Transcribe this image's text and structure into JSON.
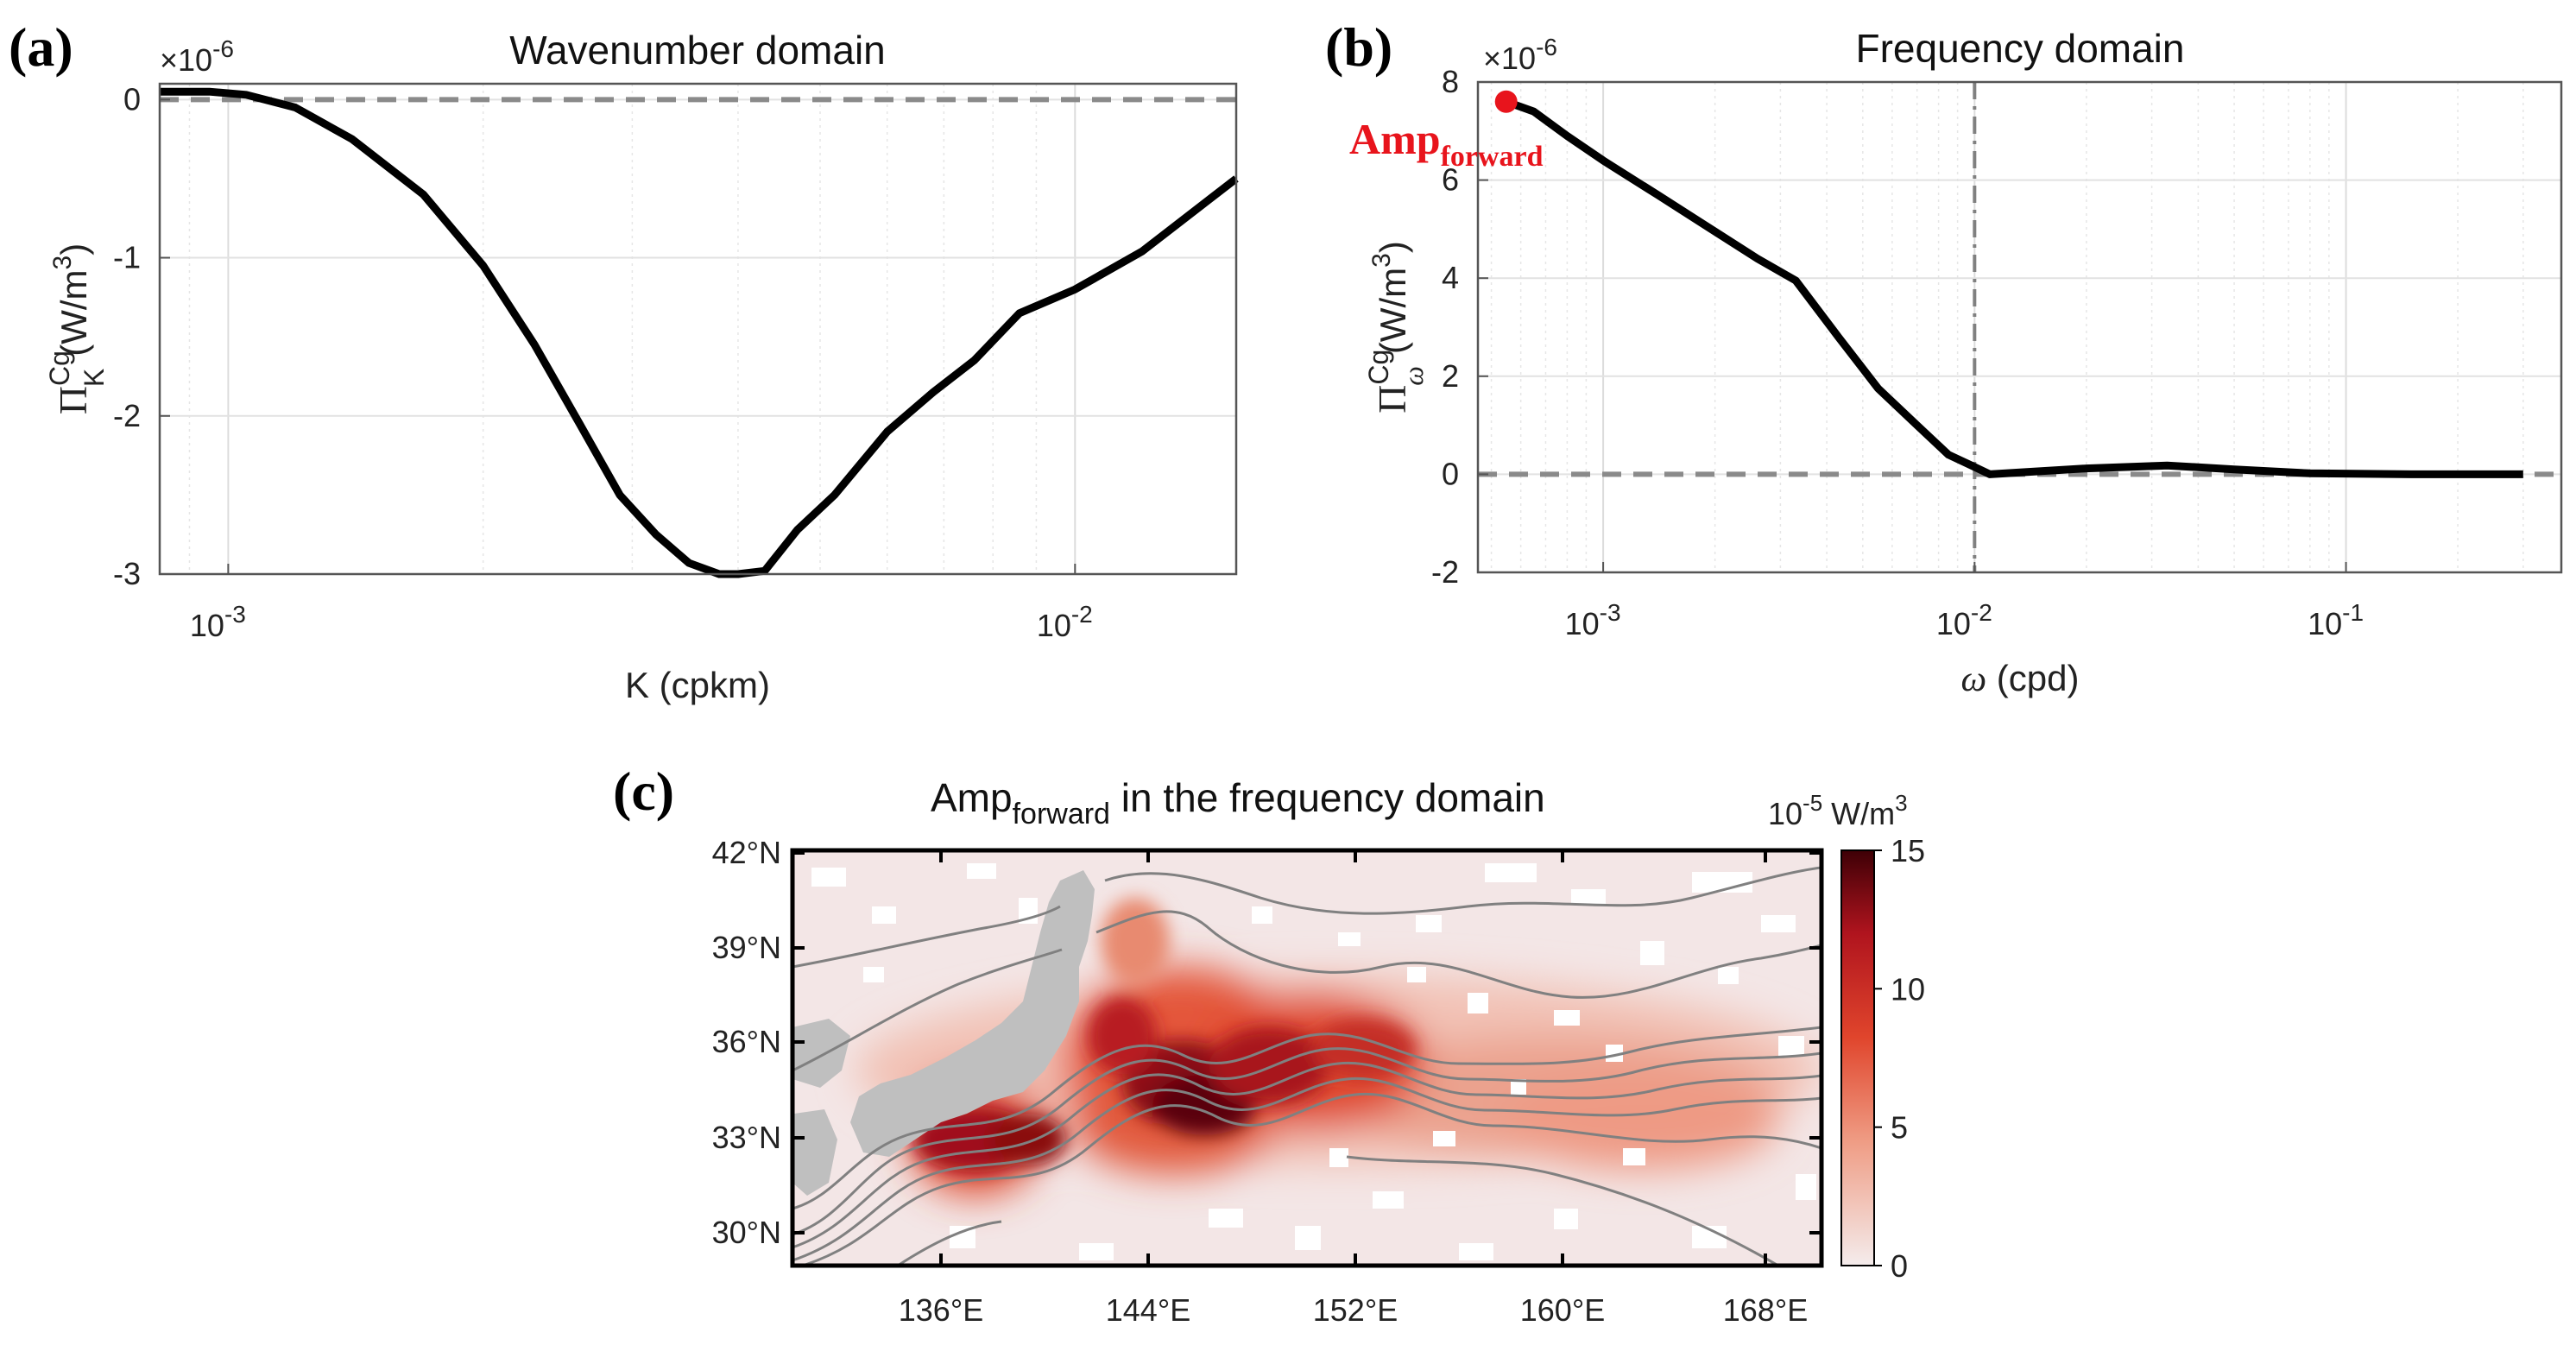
{
  "chart_data": [
    {
      "type": "line",
      "panel_label": "(a)",
      "title": "Wavenumber domain",
      "xlabel": "K (cpkm)",
      "ylabel": {
        "base": "Π",
        "sup": "Cg",
        "sub": "K",
        "unit": "(W/m",
        "unit_sup": "3",
        "unit_end": ")"
      },
      "exponent": {
        "mult": "×10",
        "pow": "-6"
      },
      "xscale": "log",
      "xlim": [
        0.00083,
        0.0155
      ],
      "ylim": [
        -3,
        0.1
      ],
      "xticks": [
        {
          "v": 0.001,
          "base": "10",
          "pow": "-3"
        },
        {
          "v": 0.01,
          "base": "10",
          "pow": "-2"
        }
      ],
      "yticks": [
        {
          "v": 0,
          "t": "0"
        },
        {
          "v": -1,
          "t": "-1"
        },
        {
          "v": -2,
          "t": "-2"
        },
        {
          "v": -3,
          "t": "-3"
        }
      ],
      "zero_line": true,
      "x": [
        0.00083,
        0.00095,
        0.00105,
        0.0012,
        0.0014,
        0.0017,
        0.002,
        0.0023,
        0.0026,
        0.0029,
        0.0032,
        0.0035,
        0.0038,
        0.004,
        0.0043,
        0.0047,
        0.0052,
        0.006,
        0.0068,
        0.0076,
        0.0086,
        0.01,
        0.012,
        0.0155
      ],
      "y": [
        0.05,
        0.05,
        0.03,
        -0.05,
        -0.25,
        -0.6,
        -1.05,
        -1.55,
        -2.05,
        -2.5,
        -2.75,
        -2.93,
        -3.0,
        -3.0,
        -2.98,
        -2.72,
        -2.5,
        -2.1,
        -1.85,
        -1.65,
        -1.35,
        -1.2,
        -0.96,
        -0.5
      ]
    },
    {
      "type": "line",
      "panel_label": "(b)",
      "title": "Frequency domain",
      "xlabel": {
        "sym": "ω",
        "unit": " (cpd)"
      },
      "ylabel": {
        "base": "Π",
        "sup": "Cg",
        "sub": "ω",
        "unit": "(W/m",
        "unit_sup": "3",
        "unit_end": ")"
      },
      "exponent": {
        "mult": "×10",
        "pow": "-6"
      },
      "xscale": "log",
      "xlim": [
        0.00046,
        0.38
      ],
      "ylim": [
        -2,
        8
      ],
      "xticks": [
        {
          "v": 0.001,
          "base": "10",
          "pow": "-3"
        },
        {
          "v": 0.01,
          "base": "10",
          "pow": "-2"
        },
        {
          "v": 0.1,
          "base": "10",
          "pow": "-1"
        }
      ],
      "yticks": [
        {
          "v": 8,
          "t": "8"
        },
        {
          "v": 6,
          "t": "6"
        },
        {
          "v": 4,
          "t": "4"
        },
        {
          "v": 2,
          "t": "2"
        },
        {
          "v": 0,
          "t": "0"
        },
        {
          "v": -2,
          "t": "-2"
        }
      ],
      "zero_line": true,
      "vline": 0.01,
      "x": [
        0.000548,
        0.00065,
        0.0008,
        0.001,
        0.0014,
        0.002,
        0.0026,
        0.0033,
        0.0043,
        0.0055,
        0.007,
        0.0085,
        0.01,
        0.011,
        0.014,
        0.02,
        0.033,
        0.05,
        0.08,
        0.15,
        0.3
      ],
      "y": [
        7.6,
        7.4,
        6.9,
        6.4,
        5.7,
        4.95,
        4.4,
        3.95,
        2.8,
        1.75,
        1.0,
        0.4,
        0.15,
        0.0,
        0.05,
        0.12,
        0.18,
        0.1,
        0.02,
        0.0,
        0.0
      ],
      "marker": {
        "x": 0.000548,
        "y": 7.6,
        "label": "Amp",
        "sub": "forward"
      }
    },
    {
      "type": "heatmap",
      "panel_label": "(c)",
      "title": {
        "main": "Amp",
        "sub": "forward",
        "rest": " in the frequency domain"
      },
      "xlim": [
        131,
        170
      ],
      "ylim": [
        29,
        42
      ],
      "xticks": [
        "136°E",
        "144°E",
        "152°E",
        "160°E",
        "168°E"
      ],
      "yticks": [
        "42°N",
        "39°N",
        "36°N",
        "33°N",
        "30°N"
      ],
      "colorbar": {
        "min": 0,
        "max": 15,
        "ticks": [
          "15",
          "10",
          "5",
          "0"
        ],
        "label_base": "10",
        "label_pow": "-5",
        "label_unit": " W/m",
        "label_unit_sup": "3"
      },
      "colors": {
        "low": "#f3e6e6",
        "mid": "#e34a2a",
        "high": "#4a0008",
        "land": "#bfbfbf",
        "contour": "#808080"
      }
    }
  ]
}
